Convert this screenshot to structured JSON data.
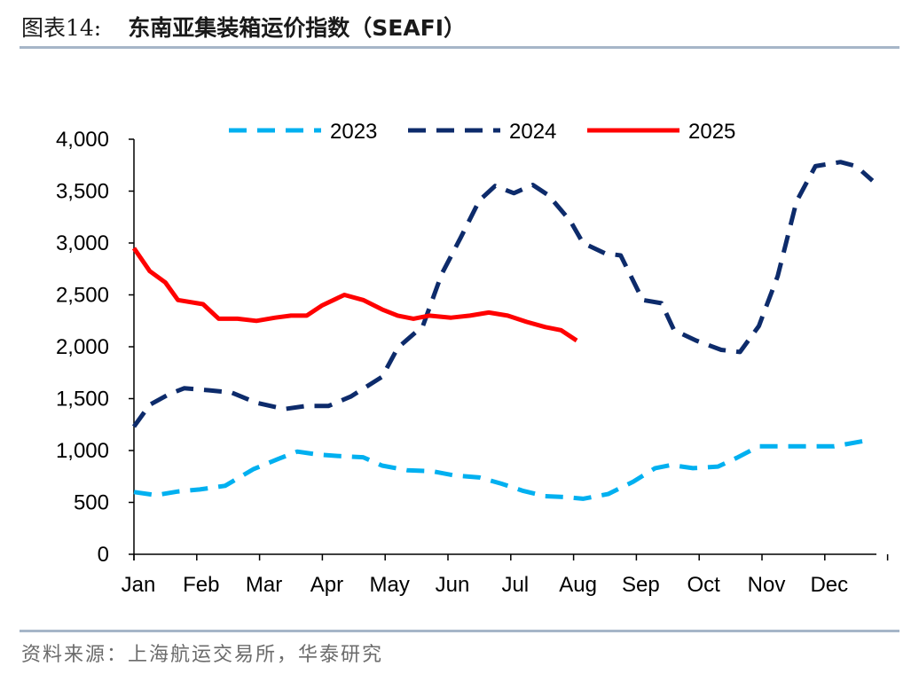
{
  "header": {
    "figure_label": "图表14:",
    "title": "东南亚集装箱运价指数（SEAFI）"
  },
  "source": "资料来源：上海航运交易所，华泰研究",
  "chart_data": {
    "type": "line",
    "title": "东南亚集装箱运价指数（SEAFI）",
    "xlabel": "",
    "ylabel": "",
    "ylim": [
      0,
      4000
    ],
    "yticks": [
      "0",
      "500",
      "1,000",
      "1,500",
      "2,000",
      "2,500",
      "3,000",
      "3,500",
      "4,000"
    ],
    "ytick_values": [
      0,
      500,
      1000,
      1500,
      2000,
      2500,
      3000,
      3500,
      4000
    ],
    "xlim": [
      1,
      12.76
    ],
    "categories": [
      "Jan",
      "Feb",
      "Mar",
      "Apr",
      "May",
      "Jun",
      "Jul",
      "Aug",
      "Sep",
      "Oct",
      "Nov",
      "Dec"
    ],
    "grid": false,
    "legend": "top",
    "series": [
      {
        "name": "2023",
        "color": "#00b0f0",
        "dash": "dashed",
        "points": [
          [
            1.0,
            600
          ],
          [
            1.35,
            570
          ],
          [
            1.7,
            605
          ],
          [
            2.05,
            625
          ],
          [
            2.45,
            660
          ],
          [
            2.9,
            820
          ],
          [
            3.3,
            920
          ],
          [
            3.6,
            990
          ],
          [
            3.95,
            960
          ],
          [
            4.3,
            945
          ],
          [
            4.65,
            935
          ],
          [
            4.95,
            855
          ],
          [
            5.35,
            810
          ],
          [
            5.75,
            800
          ],
          [
            6.1,
            760
          ],
          [
            6.5,
            740
          ],
          [
            6.85,
            680
          ],
          [
            7.2,
            610
          ],
          [
            7.55,
            560
          ],
          [
            7.9,
            550
          ],
          [
            8.15,
            535
          ],
          [
            8.55,
            580
          ],
          [
            8.95,
            700
          ],
          [
            9.3,
            830
          ],
          [
            9.55,
            860
          ],
          [
            9.9,
            830
          ],
          [
            10.3,
            845
          ],
          [
            10.6,
            930
          ],
          [
            10.95,
            1040
          ],
          [
            11.35,
            1040
          ],
          [
            11.75,
            1040
          ],
          [
            12.15,
            1040
          ],
          [
            12.6,
            1090
          ]
        ]
      },
      {
        "name": "2024",
        "color": "#0d2b6b",
        "dash": "dashed",
        "points": [
          [
            1.0,
            1230
          ],
          [
            1.25,
            1440
          ],
          [
            1.55,
            1540
          ],
          [
            1.8,
            1600
          ],
          [
            2.2,
            1580
          ],
          [
            2.55,
            1560
          ],
          [
            2.95,
            1460
          ],
          [
            3.4,
            1400
          ],
          [
            3.75,
            1430
          ],
          [
            4.1,
            1430
          ],
          [
            4.45,
            1520
          ],
          [
            4.95,
            1710
          ],
          [
            5.2,
            1990
          ],
          [
            5.6,
            2200
          ],
          [
            5.9,
            2700
          ],
          [
            6.2,
            3050
          ],
          [
            6.5,
            3410
          ],
          [
            6.75,
            3550
          ],
          [
            7.05,
            3480
          ],
          [
            7.35,
            3560
          ],
          [
            7.6,
            3460
          ],
          [
            7.95,
            3210
          ],
          [
            8.15,
            3000
          ],
          [
            8.5,
            2900
          ],
          [
            8.75,
            2880
          ],
          [
            9.1,
            2450
          ],
          [
            9.4,
            2420
          ],
          [
            9.6,
            2160
          ],
          [
            9.95,
            2060
          ],
          [
            10.35,
            1970
          ],
          [
            10.65,
            1950
          ],
          [
            10.95,
            2200
          ],
          [
            11.25,
            2680
          ],
          [
            11.55,
            3400
          ],
          [
            11.85,
            3740
          ],
          [
            12.25,
            3780
          ],
          [
            12.5,
            3740
          ],
          [
            12.76,
            3600
          ]
        ]
      },
      {
        "name": "2025",
        "color": "#ff0000",
        "dash": "solid",
        "points": [
          [
            1.0,
            2950
          ],
          [
            1.25,
            2730
          ],
          [
            1.5,
            2620
          ],
          [
            1.7,
            2450
          ],
          [
            2.1,
            2410
          ],
          [
            2.35,
            2270
          ],
          [
            2.65,
            2270
          ],
          [
            2.95,
            2250
          ],
          [
            3.25,
            2280
          ],
          [
            3.5,
            2300
          ],
          [
            3.75,
            2300
          ],
          [
            4.0,
            2400
          ],
          [
            4.35,
            2500
          ],
          [
            4.65,
            2450
          ],
          [
            4.95,
            2360
          ],
          [
            5.2,
            2300
          ],
          [
            5.45,
            2270
          ],
          [
            5.7,
            2300
          ],
          [
            6.05,
            2280
          ],
          [
            6.35,
            2300
          ],
          [
            6.65,
            2330
          ],
          [
            6.95,
            2300
          ],
          [
            7.25,
            2240
          ],
          [
            7.55,
            2190
          ],
          [
            7.8,
            2160
          ],
          [
            8.05,
            2060
          ]
        ]
      }
    ]
  }
}
